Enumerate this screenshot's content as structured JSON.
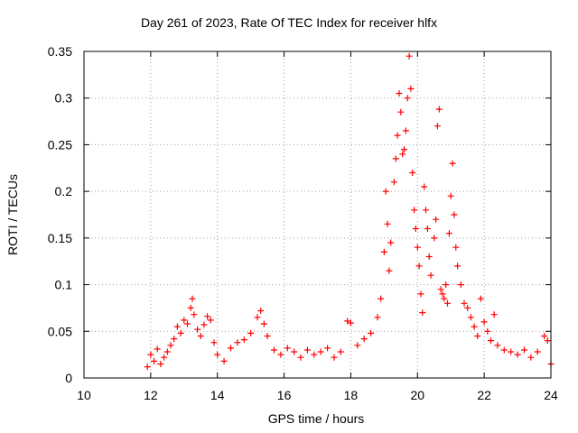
{
  "chart_data": {
    "type": "scatter",
    "title": "Day 261 of 2023, Rate Of TEC Index for receiver hlfx",
    "xlabel": "GPS time / hours",
    "ylabel": "ROTI / TECUs",
    "xlim": [
      10,
      24
    ],
    "ylim": [
      0,
      0.35
    ],
    "x_ticks": [
      "10",
      "12",
      "14",
      "16",
      "18",
      "20",
      "22",
      "24"
    ],
    "y_ticks": [
      "0",
      "0.05",
      "0.1",
      "0.15",
      "0.2",
      "0.25",
      "0.3",
      "0.35"
    ],
    "grid": true,
    "marker": "+",
    "colors": {
      "points": "#ff0000",
      "grid": "#a0a0a0",
      "axes": "#000000"
    },
    "series": [
      {
        "values": [
          [
            11.9,
            0.012
          ],
          [
            12.0,
            0.025
          ],
          [
            12.1,
            0.018
          ],
          [
            12.2,
            0.031
          ],
          [
            12.3,
            0.015
          ],
          [
            12.4,
            0.022
          ],
          [
            12.5,
            0.028
          ],
          [
            12.6,
            0.035
          ],
          [
            12.7,
            0.042
          ],
          [
            12.8,
            0.055
          ],
          [
            12.9,
            0.048
          ],
          [
            13.0,
            0.062
          ],
          [
            13.1,
            0.058
          ],
          [
            13.2,
            0.075
          ],
          [
            13.25,
            0.085
          ],
          [
            13.3,
            0.068
          ],
          [
            13.4,
            0.052
          ],
          [
            13.5,
            0.045
          ],
          [
            13.6,
            0.057
          ],
          [
            13.7,
            0.066
          ],
          [
            13.8,
            0.062
          ],
          [
            13.9,
            0.038
          ],
          [
            14.0,
            0.025
          ],
          [
            14.2,
            0.018
          ],
          [
            14.4,
            0.032
          ],
          [
            14.6,
            0.038
          ],
          [
            14.8,
            0.041
          ],
          [
            15.0,
            0.048
          ],
          [
            15.2,
            0.065
          ],
          [
            15.3,
            0.072
          ],
          [
            15.4,
            0.058
          ],
          [
            15.5,
            0.045
          ],
          [
            15.7,
            0.03
          ],
          [
            15.9,
            0.025
          ],
          [
            16.1,
            0.032
          ],
          [
            16.3,
            0.028
          ],
          [
            16.5,
            0.022
          ],
          [
            16.7,
            0.03
          ],
          [
            16.9,
            0.025
          ],
          [
            17.1,
            0.028
          ],
          [
            17.3,
            0.032
          ],
          [
            17.5,
            0.022
          ],
          [
            17.7,
            0.028
          ],
          [
            17.9,
            0.061
          ],
          [
            18.0,
            0.059
          ],
          [
            18.2,
            0.035
          ],
          [
            18.4,
            0.042
          ],
          [
            18.6,
            0.048
          ],
          [
            18.8,
            0.065
          ],
          [
            18.9,
            0.085
          ],
          [
            19.0,
            0.135
          ],
          [
            19.05,
            0.2
          ],
          [
            19.1,
            0.165
          ],
          [
            19.15,
            0.115
          ],
          [
            19.2,
            0.145
          ],
          [
            19.3,
            0.21
          ],
          [
            19.35,
            0.235
          ],
          [
            19.4,
            0.26
          ],
          [
            19.45,
            0.305
          ],
          [
            19.5,
            0.285
          ],
          [
            19.55,
            0.24
          ],
          [
            19.6,
            0.245
          ],
          [
            19.65,
            0.265
          ],
          [
            19.7,
            0.3
          ],
          [
            19.75,
            0.345
          ],
          [
            19.8,
            0.31
          ],
          [
            19.85,
            0.22
          ],
          [
            19.9,
            0.18
          ],
          [
            19.95,
            0.16
          ],
          [
            20.0,
            0.14
          ],
          [
            20.05,
            0.12
          ],
          [
            20.1,
            0.09
          ],
          [
            20.15,
            0.07
          ],
          [
            20.2,
            0.205
          ],
          [
            20.25,
            0.18
          ],
          [
            20.3,
            0.16
          ],
          [
            20.35,
            0.13
          ],
          [
            20.4,
            0.11
          ],
          [
            20.5,
            0.15
          ],
          [
            20.55,
            0.17
          ],
          [
            20.6,
            0.27
          ],
          [
            20.65,
            0.288
          ],
          [
            20.7,
            0.095
          ],
          [
            20.75,
            0.09
          ],
          [
            20.8,
            0.085
          ],
          [
            20.85,
            0.1
          ],
          [
            20.9,
            0.08
          ],
          [
            20.95,
            0.155
          ],
          [
            21.0,
            0.195
          ],
          [
            21.05,
            0.23
          ],
          [
            21.1,
            0.175
          ],
          [
            21.15,
            0.14
          ],
          [
            21.2,
            0.12
          ],
          [
            21.3,
            0.1
          ],
          [
            21.4,
            0.08
          ],
          [
            21.5,
            0.075
          ],
          [
            21.6,
            0.065
          ],
          [
            21.7,
            0.055
          ],
          [
            21.8,
            0.045
          ],
          [
            21.9,
            0.085
          ],
          [
            22.0,
            0.06
          ],
          [
            22.1,
            0.05
          ],
          [
            22.2,
            0.04
          ],
          [
            22.3,
            0.068
          ],
          [
            22.4,
            0.035
          ],
          [
            22.6,
            0.03
          ],
          [
            22.8,
            0.028
          ],
          [
            23.0,
            0.025
          ],
          [
            23.2,
            0.03
          ],
          [
            23.4,
            0.022
          ],
          [
            23.6,
            0.028
          ],
          [
            23.8,
            0.045
          ],
          [
            23.9,
            0.04
          ],
          [
            24.0,
            0.015
          ]
        ]
      }
    ]
  }
}
